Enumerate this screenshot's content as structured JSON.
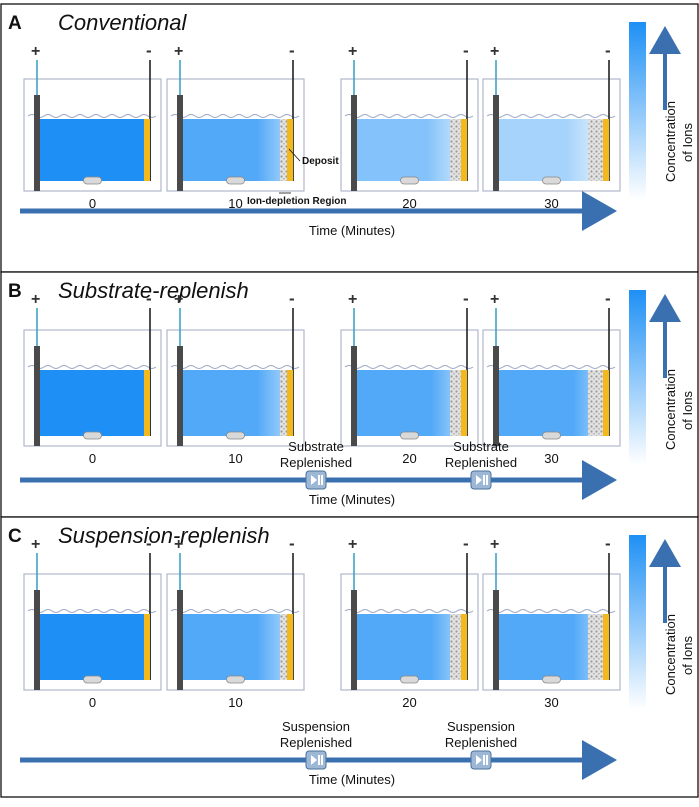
{
  "colors": {
    "water": "#1e90f5",
    "deposit": "#f2b81c",
    "axis": "#3a6fb0",
    "electrode": "#4a4a4a",
    "anode_wire": "#3fa3c4",
    "tank_border": "#b0b8cc"
  },
  "legend": {
    "label_line1": "Concentration",
    "label_line2": "of Ions"
  },
  "panels": [
    {
      "letter": "A",
      "title": "Conventional",
      "axis_label": "Time (Minutes)",
      "times": [
        "0",
        "10",
        "20",
        "30"
      ],
      "depletion_fraction": [
        0,
        0.3,
        0.6,
        0.8
      ],
      "deposit_level": [
        0,
        1,
        2,
        3
      ],
      "annotations": {
        "deposit": "Deposit",
        "ion_depletion": "Ion-depletion Region"
      },
      "replenish_label": [],
      "plus_sign": "+",
      "minus_sign": "-"
    },
    {
      "letter": "B",
      "title": "Substrate-replenish",
      "axis_label": "Time (Minutes)",
      "times": [
        "0",
        "10",
        "20",
        "30"
      ],
      "depletion_fraction": [
        0,
        0.3,
        0.3,
        0.3
      ],
      "deposit_level": [
        0,
        1,
        2,
        3
      ],
      "annotations": {},
      "replenish_label": [
        "Substrate",
        "Replenished"
      ],
      "plus_sign": "+",
      "minus_sign": "-"
    },
    {
      "letter": "C",
      "title": "Suspension-replenish",
      "axis_label": "Time (Minutes)",
      "times": [
        "0",
        "10",
        "20",
        "30"
      ],
      "depletion_fraction": [
        0,
        0.3,
        0.3,
        0.3
      ],
      "deposit_level": [
        0,
        1,
        2,
        3
      ],
      "annotations": {},
      "replenish_label": [
        "Suspension",
        "Replenished"
      ],
      "plus_sign": "+",
      "minus_sign": "-"
    }
  ]
}
